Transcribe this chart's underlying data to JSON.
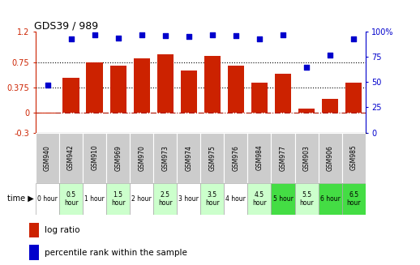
{
  "title": "GDS39 / 989",
  "samples": [
    "GSM940",
    "GSM942",
    "GSM910",
    "GSM969",
    "GSM970",
    "GSM973",
    "GSM974",
    "GSM975",
    "GSM976",
    "GSM984",
    "GSM977",
    "GSM903",
    "GSM906",
    "GSM985"
  ],
  "time_labels": [
    "0 hour",
    "0.5\nhour",
    "1 hour",
    "1.5\nhour",
    "2 hour",
    "2.5\nhour",
    "3 hour",
    "3.5\nhour",
    "4 hour",
    "4.5\nhour",
    "5 hour",
    "5.5\nhour",
    "6 hour",
    "6.5\nhour"
  ],
  "time_bg_colors": [
    "#ffffff",
    "#ccffcc",
    "#ffffff",
    "#ccffcc",
    "#ffffff",
    "#ccffcc",
    "#ffffff",
    "#ccffcc",
    "#ffffff",
    "#ccffcc",
    "#44dd44",
    "#ccffcc",
    "#44dd44",
    "#44dd44"
  ],
  "log_ratio": [
    -0.02,
    0.52,
    0.75,
    0.7,
    0.8,
    0.86,
    0.62,
    0.84,
    0.69,
    0.44,
    0.57,
    0.06,
    0.2,
    0.44
  ],
  "percentile": [
    47,
    93,
    97,
    94,
    97,
    96,
    95,
    97,
    96,
    93,
    97,
    65,
    77,
    93
  ],
  "bar_color": "#cc2200",
  "dot_color": "#0000cc",
  "ylim_left": [
    -0.3,
    1.2
  ],
  "ylim_right": [
    0,
    100
  ],
  "yticks_left": [
    -0.3,
    0,
    0.375,
    0.75,
    1.2
  ],
  "yticks_right": [
    0,
    25,
    50,
    75,
    100
  ],
  "ytick_labels_left": [
    "-0.3",
    "0",
    "0.375",
    "0.75",
    "1.2"
  ],
  "ytick_labels_right": [
    "0",
    "25",
    "50",
    "75",
    "100%"
  ],
  "hlines": [
    0.375,
    0.75
  ],
  "zero_line": 0,
  "legend_log_ratio": "log ratio",
  "legend_percentile": "percentile rank within the sample",
  "time_label": "time"
}
